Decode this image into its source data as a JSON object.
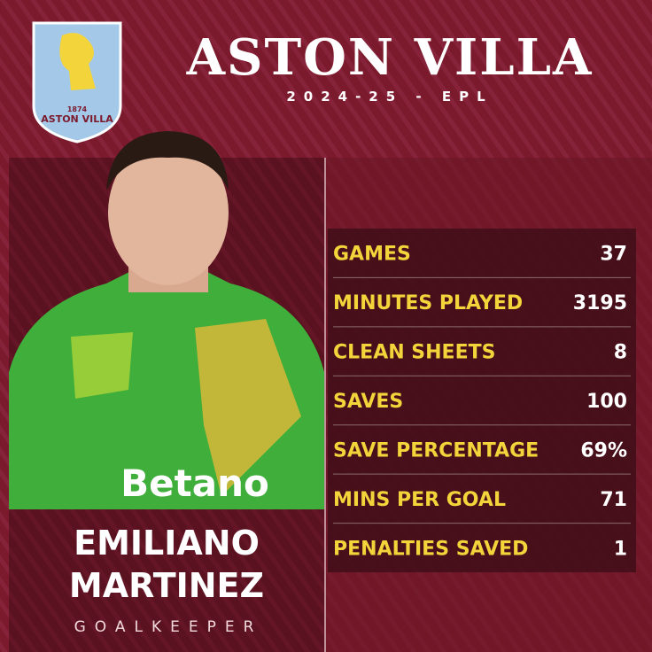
{
  "header": {
    "title": "ASTON VILLA",
    "subtitle": "2024-25 - EPL"
  },
  "badge": {
    "year": "1874",
    "name": "ASTON VILLA"
  },
  "photo": {
    "sponsor": "Betano"
  },
  "player": {
    "first_name": "EMILIANO",
    "last_name": "MARTINEZ",
    "position": "GOALKEEPER"
  },
  "stats": {
    "rows": [
      [
        "GAMES",
        "37"
      ],
      [
        "MINUTES PLAYED",
        "3195"
      ],
      [
        "CLEAN SHEETS",
        "8"
      ],
      [
        "SAVES",
        "100"
      ],
      [
        "SAVE PERCENTAGE",
        "69%"
      ],
      [
        "MINS PER GOAL",
        "71"
      ],
      [
        "PENALTIES SAVED",
        "1"
      ]
    ]
  }
}
